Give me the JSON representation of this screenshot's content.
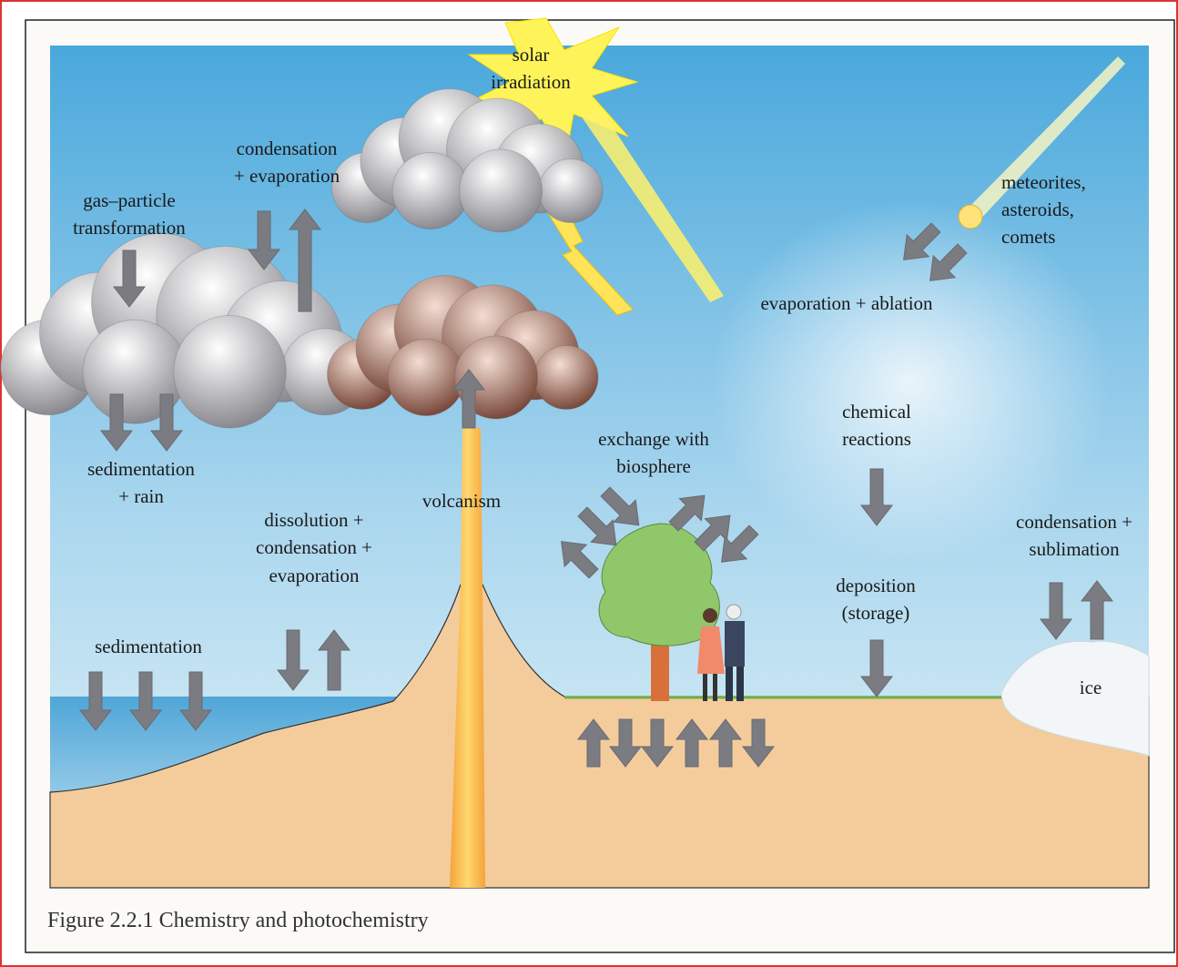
{
  "labels": [
    {
      "lines": [
        "solar",
        "irradiation"
      ]
    },
    {
      "lines": [
        "condensation",
        "+ evaporation"
      ]
    },
    {
      "lines": [
        "gas–particle",
        "transformation"
      ]
    },
    {
      "lines": [
        "meteorites,",
        "asteroids,",
        "comets"
      ]
    },
    {
      "lines": [
        "evaporation + ablation"
      ]
    },
    {
      "lines": [
        "chemical",
        "reactions"
      ]
    },
    {
      "lines": [
        "exchange with",
        "biosphere"
      ]
    },
    {
      "lines": [
        "sedimentation",
        "+ rain"
      ]
    },
    {
      "lines": [
        "volcanism"
      ]
    },
    {
      "lines": [
        "dissolution +",
        "condensation +",
        "evaporation"
      ]
    },
    {
      "lines": [
        "condensation +",
        "sublimation"
      ]
    },
    {
      "lines": [
        "deposition",
        "(storage)"
      ]
    },
    {
      "lines": [
        "sedimentation"
      ]
    },
    {
      "lines": [
        "ice"
      ]
    }
  ],
  "caption": "Figure 2.2.1 Chemistry and photochemistry"
}
